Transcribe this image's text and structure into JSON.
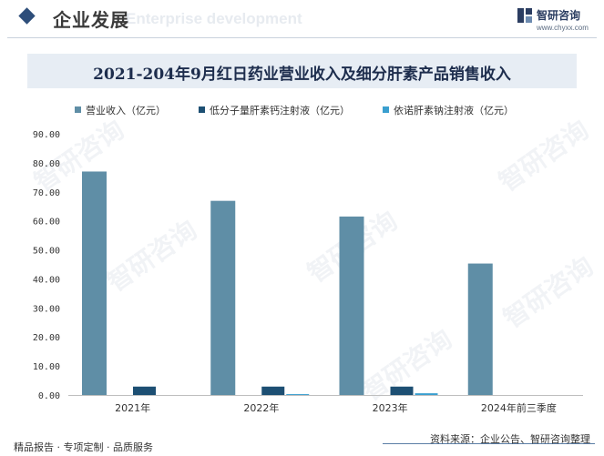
{
  "header": {
    "title": "企业发展",
    "subtitle": "Enterprise development",
    "brand_name": "智研咨询",
    "brand_url": "www.chyxx.com"
  },
  "watermark": "智研咨询",
  "chart_data": {
    "type": "bar",
    "title": "2021-204年9月红日药业营业收入及细分肝素产品销售收入",
    "categories": [
      "2021年",
      "2022年",
      "2023年",
      "2024年前三季度"
    ],
    "series": [
      {
        "name": "营业收入（亿元）",
        "color": "#5f8ea6",
        "values": [
          77.0,
          66.9,
          61.5,
          45.3
        ]
      },
      {
        "name": "低分子量肝素钙注射液（亿元）",
        "color": "#1d4f73",
        "values": [
          2.9,
          2.9,
          2.9,
          0
        ]
      },
      {
        "name": "依诺肝素钠注射液（亿元）",
        "color": "#3a9fcf",
        "values": [
          0,
          0.3,
          0.6,
          0
        ]
      }
    ],
    "ylim": [
      0,
      90
    ],
    "yticks": [
      "0.00",
      "10.00",
      "20.00",
      "30.00",
      "40.00",
      "50.00",
      "60.00",
      "70.00",
      "80.00",
      "90.00"
    ],
    "grid": false,
    "legend_position": "top"
  },
  "footer": {
    "left": "精品报告 · 专项定制 · 品质服务",
    "right": "资料来源：企业公告、智研咨询整理"
  }
}
